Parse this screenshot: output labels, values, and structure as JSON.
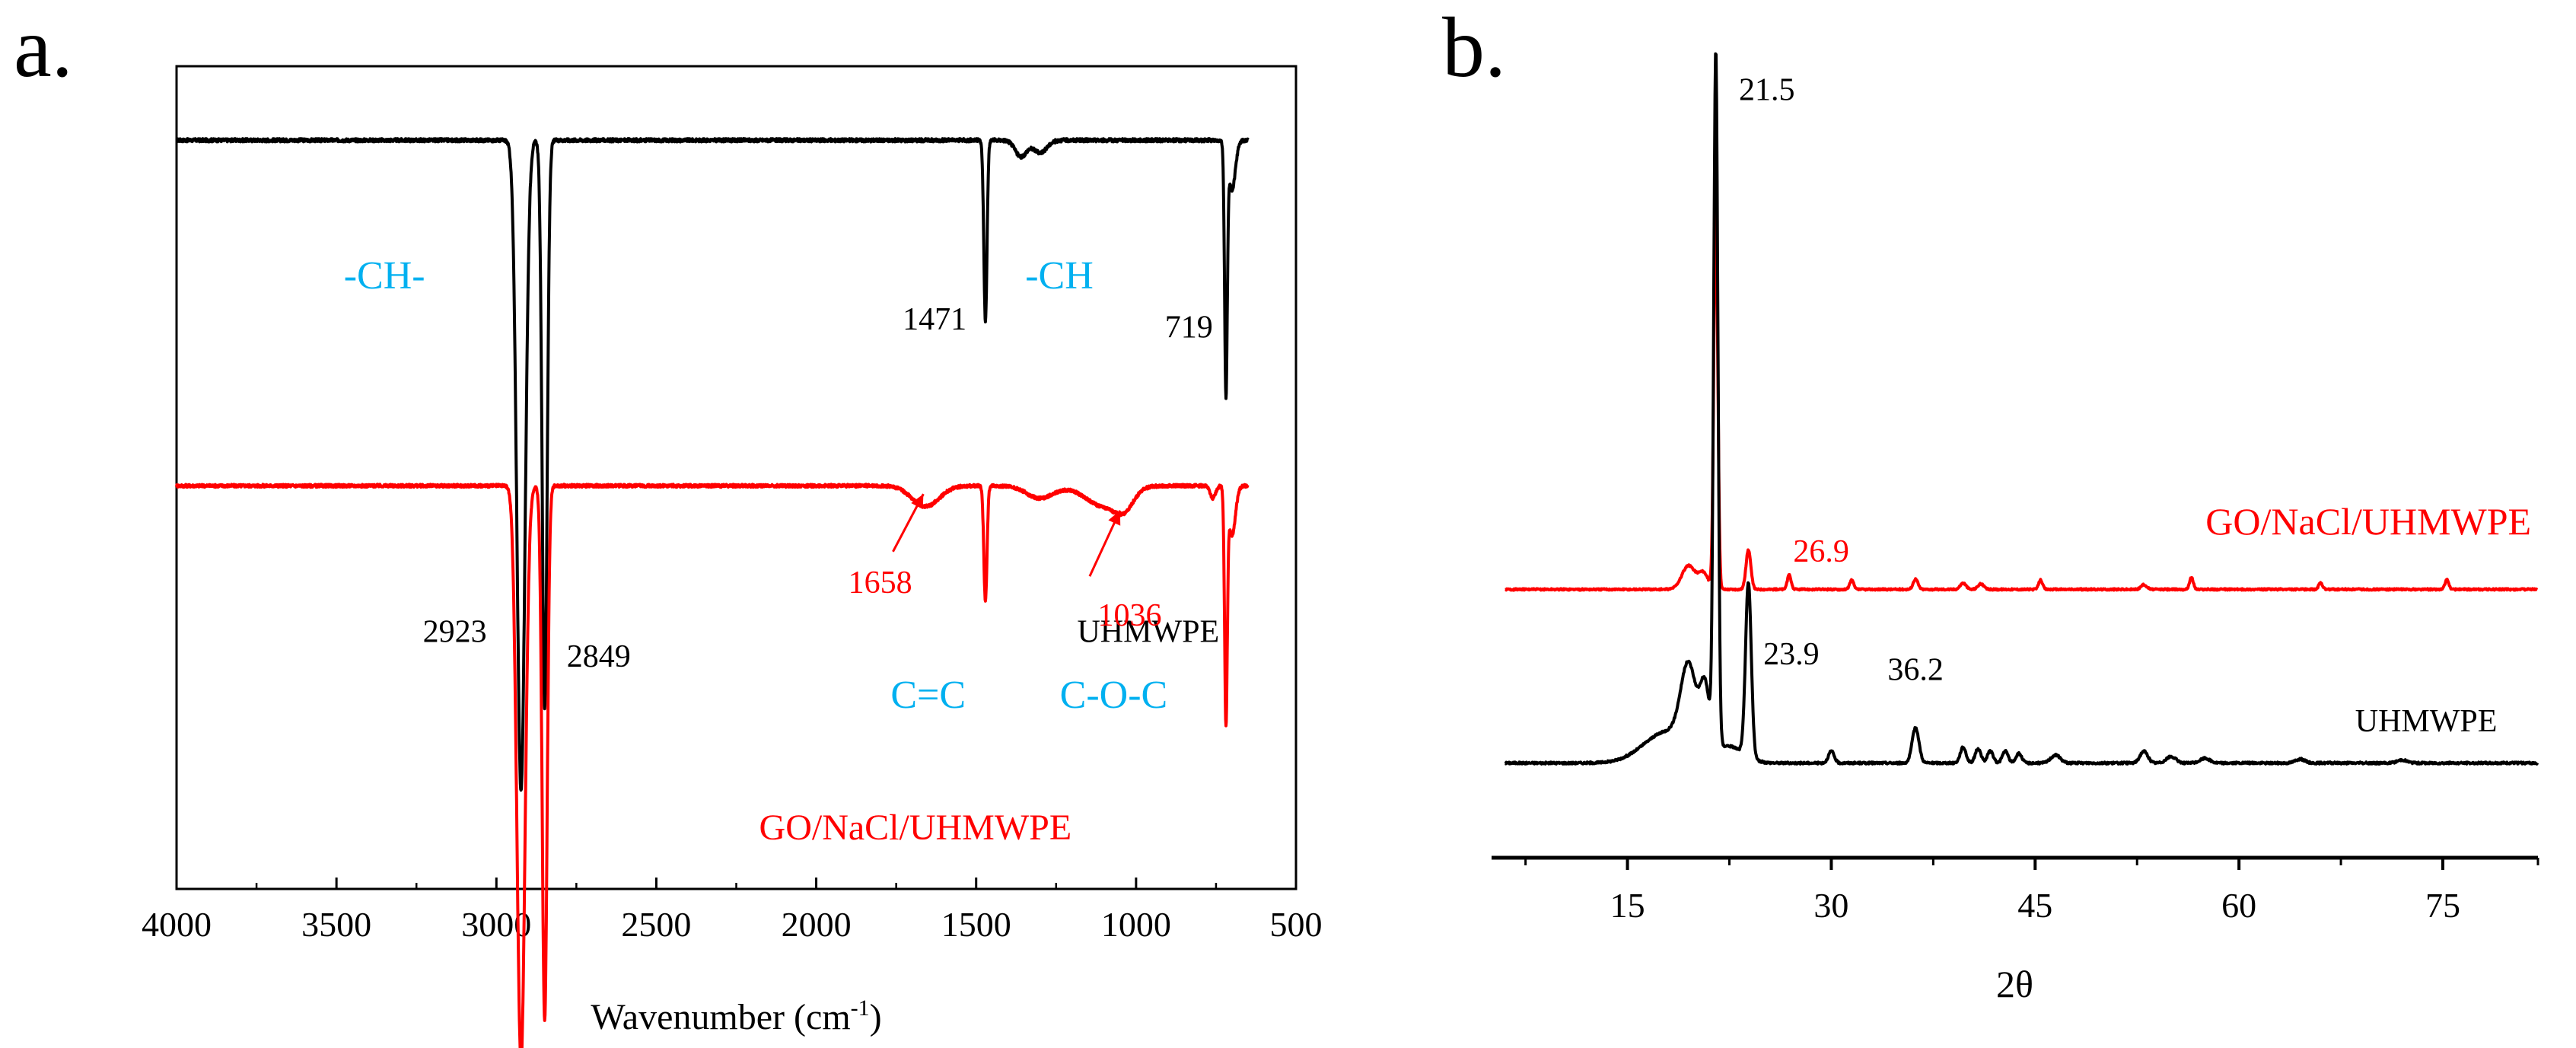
{
  "colors": {
    "black": "#000000",
    "red": "#ff0000",
    "cyan": "#00b0f0"
  },
  "chart_data": [
    {
      "panel_label": "a.",
      "type": "line",
      "title": "",
      "xlabel_main": "Wavenumber (cm",
      "xlabel_sup": "-1",
      "xlabel_close": ")",
      "ylabel": "",
      "xlim": [
        4000,
        500
      ],
      "ylim": [
        0,
        100
      ],
      "xticks": [
        4000,
        3500,
        3000,
        2500,
        2000,
        1500,
        1000,
        500
      ],
      "grid": false,
      "series": [
        {
          "name": "UHMWPE",
          "color": "#000000",
          "baseline": 91,
          "noise": 0.4,
          "start": 4000,
          "end": 650,
          "features": [
            {
              "pos": 2923,
              "depth": 79,
              "width": 18
            },
            {
              "pos": 2849,
              "depth": 69,
              "width": 11
            },
            {
              "pos": 1471,
              "depth": 22,
              "width": 7
            },
            {
              "pos": 1360,
              "depth": 2,
              "width": 25
            },
            {
              "pos": 1300,
              "depth": 1.5,
              "width": 30
            },
            {
              "pos": 719,
              "depth": 30,
              "width": 6
            },
            {
              "pos": 700,
              "depth": 6,
              "width": 15
            }
          ]
        },
        {
          "name": "GO/NaCl/UHMWPE",
          "color": "#ff0000",
          "baseline": 49,
          "noise": 0.35,
          "start": 4000,
          "end": 650,
          "features": [
            {
              "pos": 2923,
              "depth": 70,
              "width": 18
            },
            {
              "pos": 2849,
              "depth": 65,
              "width": 11
            },
            {
              "pos": 1658,
              "depth": 2.5,
              "width": 60
            },
            {
              "pos": 1471,
              "depth": 14,
              "width": 7
            },
            {
              "pos": 1300,
              "depth": 1.5,
              "width": 60
            },
            {
              "pos": 1100,
              "depth": 2.5,
              "width": 80
            },
            {
              "pos": 1036,
              "depth": 2,
              "width": 40
            },
            {
              "pos": 760,
              "depth": 1.5,
              "width": 12
            },
            {
              "pos": 719,
              "depth": 28,
              "width": 6
            },
            {
              "pos": 700,
              "depth": 6,
              "width": 15
            }
          ]
        }
      ],
      "annotations": [
        {
          "text": "2923",
          "color": "#000000",
          "x": 3030,
          "y": 30,
          "anchor": "end"
        },
        {
          "text": "2849",
          "color": "#000000",
          "x": 2780,
          "y": 27,
          "anchor": "start"
        },
        {
          "text": "1471",
          "color": "#000000",
          "x": 1530,
          "y": 68,
          "anchor": "end"
        },
        {
          "text": "719",
          "color": "#000000",
          "x": 760,
          "y": 67,
          "anchor": "end"
        },
        {
          "text": "UHMWPE",
          "color": "#000000",
          "x": 740,
          "y": 30,
          "anchor": "end"
        },
        {
          "text": "-CH-",
          "color": "#00b0f0",
          "x": 3350,
          "y": 73,
          "anchor": "middle"
        },
        {
          "text": "-CH",
          "color": "#00b0f0",
          "x": 1240,
          "y": 73,
          "anchor": "middle"
        },
        {
          "text": "1658",
          "color": "#ff0000",
          "x": 1700,
          "y": 36,
          "anchor": "end"
        },
        {
          "text": "1036",
          "color": "#ff0000",
          "x": 1020,
          "y": 32,
          "anchor": "middle"
        },
        {
          "text": "C=C",
          "color": "#00b0f0",
          "x": 1650,
          "y": 22,
          "anchor": "middle"
        },
        {
          "text": "C-O-C",
          "color": "#00b0f0",
          "x": 1070,
          "y": 22,
          "anchor": "middle"
        },
        {
          "text": "GO/NaCl/UHMWPE",
          "color": "#ff0000",
          "x": 1690,
          "y": 6,
          "anchor": "middle"
        }
      ],
      "arrows": [
        {
          "from": [
            1760,
            41
          ],
          "to": [
            1665,
            48
          ],
          "color": "#ff0000"
        },
        {
          "from": [
            1145,
            38
          ],
          "to": [
            1050,
            46
          ],
          "color": "#ff0000"
        }
      ]
    },
    {
      "panel_label": "b.",
      "type": "line",
      "title": "",
      "xlabel": "2θ",
      "ylabel": "",
      "xlim": [
        5,
        82
      ],
      "ylim": [
        0,
        100
      ],
      "xticks": [
        15,
        30,
        45,
        60,
        75
      ],
      "minor_ticks": [
        7.5,
        22.5,
        37.5,
        52.5,
        67.5,
        82
      ],
      "grid": false,
      "series": [
        {
          "name": "UHMWPE",
          "color": "#000000",
          "baseline": 12,
          "noise": 0.25,
          "start": 6,
          "end": 82,
          "features": [
            {
              "pos": 21.5,
              "height": 88,
              "width": 0.22
            },
            {
              "pos": 19.5,
              "height": 10,
              "width": 0.8
            },
            {
              "pos": 20.7,
              "height": 8,
              "width": 0.5
            },
            {
              "pos": 18,
              "height": 4,
              "width": 2.5
            },
            {
              "pos": 23.9,
              "height": 22,
              "width": 0.3
            },
            {
              "pos": 22.5,
              "height": 2,
              "width": 1.5
            },
            {
              "pos": 30,
              "height": 1.5,
              "width": 0.3
            },
            {
              "pos": 36.2,
              "height": 4.5,
              "width": 0.35
            },
            {
              "pos": 39.7,
              "height": 2,
              "width": 0.3
            },
            {
              "pos": 40.8,
              "height": 1.8,
              "width": 0.3
            },
            {
              "pos": 41.7,
              "height": 1.5,
              "width": 0.3
            },
            {
              "pos": 42.8,
              "height": 1.5,
              "width": 0.3
            },
            {
              "pos": 43.8,
              "height": 1.2,
              "width": 0.3
            },
            {
              "pos": 46.5,
              "height": 1,
              "width": 0.5
            },
            {
              "pos": 53,
              "height": 1.5,
              "width": 0.4
            },
            {
              "pos": 55,
              "height": 0.8,
              "width": 0.5
            },
            {
              "pos": 57.5,
              "height": 0.6,
              "width": 0.5
            },
            {
              "pos": 64.5,
              "height": 0.5,
              "width": 0.5
            },
            {
              "pos": 72,
              "height": 0.4,
              "width": 0.5
            }
          ]
        },
        {
          "name": "GO/NaCl/UHMWPE",
          "color": "#ff0000",
          "baseline": 34,
          "noise": 0.2,
          "start": 6,
          "end": 82,
          "features": [
            {
              "pos": 21.5,
              "height": 50,
              "width": 0.2
            },
            {
              "pos": 19.5,
              "height": 3,
              "width": 0.7
            },
            {
              "pos": 20.6,
              "height": 2,
              "width": 0.5
            },
            {
              "pos": 23.9,
              "height": 5,
              "width": 0.25
            },
            {
              "pos": 26.9,
              "height": 1.8,
              "width": 0.2
            },
            {
              "pos": 31.5,
              "height": 1.2,
              "width": 0.2
            },
            {
              "pos": 36.2,
              "height": 1.3,
              "width": 0.25
            },
            {
              "pos": 39.7,
              "height": 0.8,
              "width": 0.3
            },
            {
              "pos": 41,
              "height": 0.7,
              "width": 0.3
            },
            {
              "pos": 45.4,
              "height": 1.2,
              "width": 0.2
            },
            {
              "pos": 53,
              "height": 0.6,
              "width": 0.3
            },
            {
              "pos": 56.5,
              "height": 1.5,
              "width": 0.2
            },
            {
              "pos": 66,
              "height": 0.8,
              "width": 0.2
            },
            {
              "pos": 75.3,
              "height": 1.2,
              "width": 0.2
            }
          ]
        }
      ],
      "annotations": [
        {
          "text": "21.5",
          "color": "#000000",
          "x": 23.2,
          "y": 96,
          "anchor": "start"
        },
        {
          "text": "26.9",
          "color": "#ff0000",
          "x": 27.2,
          "y": 37.5,
          "anchor": "start"
        },
        {
          "text": "GO/NaCl/UHMWPE",
          "color": "#ff0000",
          "x": 81.5,
          "y": 41,
          "anchor": "end"
        },
        {
          "text": "23.9",
          "color": "#000000",
          "x": 25,
          "y": 24.5,
          "anchor": "start"
        },
        {
          "text": "36.2",
          "color": "#000000",
          "x": 36.2,
          "y": 22.5,
          "anchor": "middle"
        },
        {
          "text": "UHMWPE",
          "color": "#000000",
          "x": 79,
          "y": 16,
          "anchor": "end"
        }
      ]
    }
  ]
}
